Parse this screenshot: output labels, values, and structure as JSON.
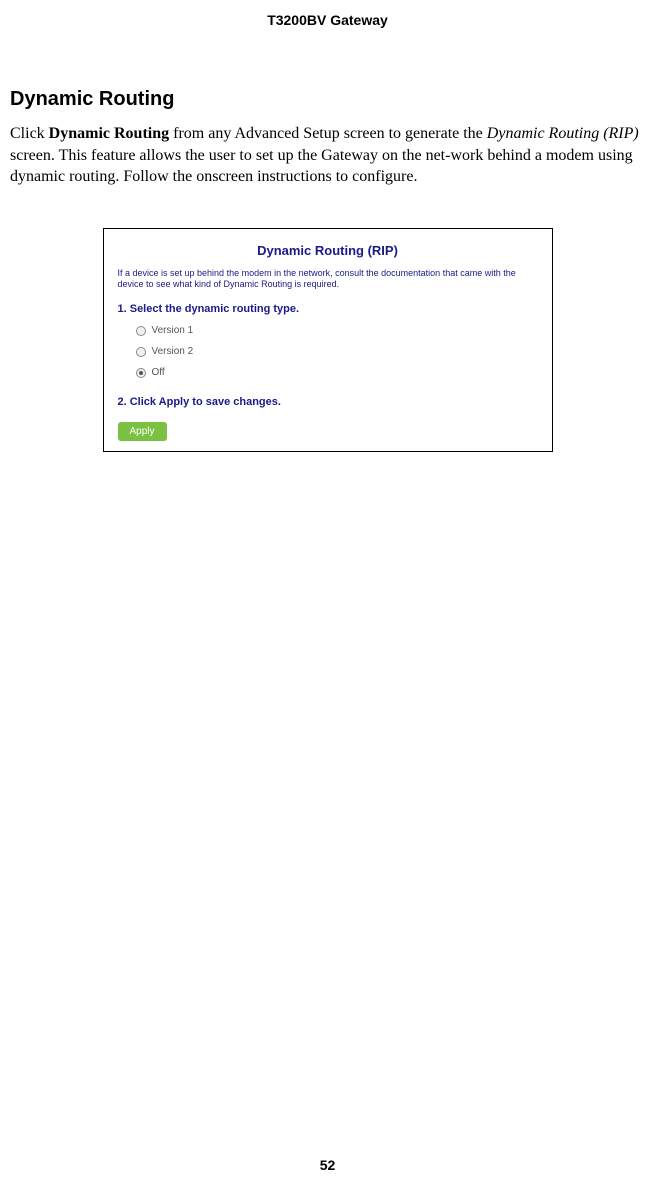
{
  "header": {
    "title": "T3200BV Gateway"
  },
  "section": {
    "heading": "Dynamic Routing",
    "body_prefix": "Click ",
    "body_bold": "Dynamic Routing",
    "body_mid1": " from any Advanced Setup screen to generate the ",
    "body_italic": "Dynamic Routing (RIP)",
    "body_suffix": " screen. This feature allows the user to set up the Gateway on the net-work behind a modem using dynamic routing. Follow the onscreen instructions to configure."
  },
  "screenshot": {
    "title": "Dynamic Routing (RIP)",
    "helper_text": "If a device is set up behind the modem in the network, consult the documentation that came with the device to see what kind of Dynamic Routing is required.",
    "step1_label": "1. Select the dynamic routing type.",
    "step2_label": "2. Click Apply to save changes.",
    "options": {
      "v1": "Version 1",
      "v2": "Version 2",
      "off": "Off"
    },
    "apply_label": "Apply",
    "colors": {
      "title_color": "#1a1a8a",
      "button_bg": "#7ac142",
      "button_text": "#ffffff"
    }
  },
  "footer": {
    "page_number": "52"
  }
}
